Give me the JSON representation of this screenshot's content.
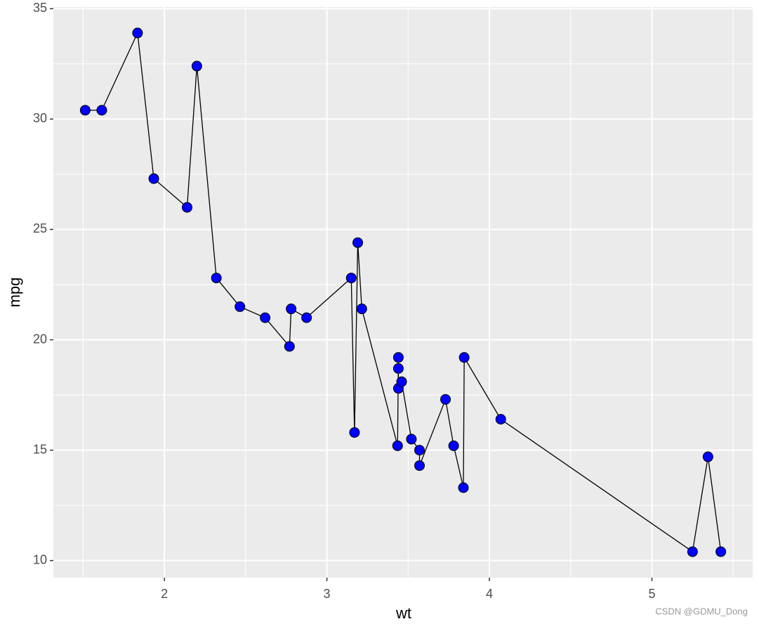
{
  "chart_data": {
    "type": "line",
    "x_label": "wt",
    "y_label": "mpg",
    "x": [
      1.513,
      1.615,
      1.835,
      1.935,
      2.14,
      2.2,
      2.32,
      2.465,
      2.62,
      2.77,
      2.78,
      2.875,
      3.15,
      3.17,
      3.19,
      3.215,
      3.435,
      3.44,
      3.44,
      3.44,
      3.46,
      3.52,
      3.57,
      3.57,
      3.73,
      3.78,
      3.84,
      3.845,
      4.07,
      5.25,
      5.345,
      5.424
    ],
    "values": [
      30.4,
      30.4,
      33.9,
      27.3,
      26.0,
      32.4,
      22.8,
      21.5,
      21.0,
      19.7,
      21.4,
      21.0,
      22.8,
      15.8,
      24.4,
      21.4,
      15.2,
      19.2,
      18.7,
      17.8,
      18.1,
      15.5,
      15.0,
      14.3,
      17.3,
      15.2,
      13.3,
      19.2,
      16.4,
      10.4,
      14.7,
      10.4
    ],
    "line_color": "#000000",
    "point_color": "#0000ff",
    "xlim": [
      1.317,
      5.62
    ],
    "ylim": [
      9.225,
      35.075
    ],
    "xticks": [
      2,
      3,
      4,
      5
    ],
    "yticks": [
      10,
      15,
      20,
      25,
      30,
      35
    ],
    "x_minor_breaks": [
      1.5,
      2.5,
      3.5,
      4.5,
      5.5
    ],
    "y_minor_breaks": [
      12.5,
      17.5,
      22.5,
      27.5,
      32.5
    ],
    "grid": true,
    "watermark": "CSDN @GDMU_Dong"
  }
}
